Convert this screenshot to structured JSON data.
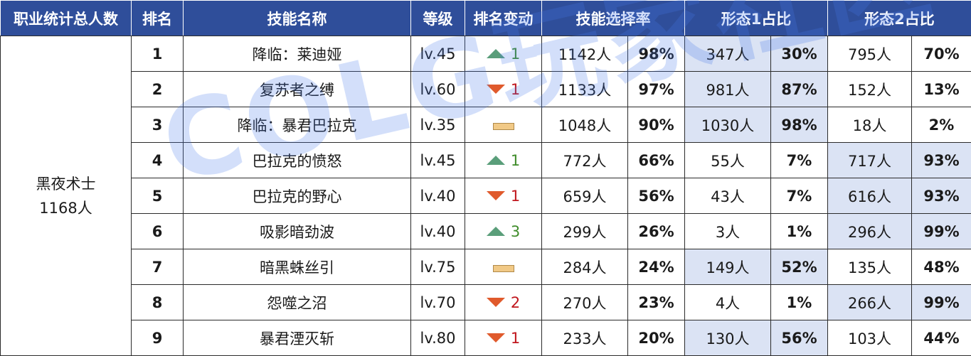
{
  "headers": {
    "job_total": "职业统计总人数",
    "rank": "排名",
    "skill_name": "技能名称",
    "level": "等级",
    "rank_change": "排名变动",
    "select_rate": "技能选择率",
    "form1": "形态1占比",
    "form2": "形态2占比"
  },
  "job": {
    "name": "黑夜术士",
    "total": "1168人"
  },
  "rows": [
    {
      "rank": "1",
      "name": "降临：莱迪娅",
      "level": "lv.45",
      "change_dir": "up",
      "change_num": "1",
      "sel_count": "1142人",
      "sel_pct": "98%",
      "f1_count": "347人",
      "f1_pct": "30%",
      "f2_count": "795人",
      "f2_pct": "70%"
    },
    {
      "rank": "2",
      "name": "复苏者之缚",
      "level": "lv.60",
      "change_dir": "down",
      "change_num": "1",
      "sel_count": "1133人",
      "sel_pct": "97%",
      "f1_count": "981人",
      "f1_pct": "87%",
      "f2_count": "152人",
      "f2_pct": "13%"
    },
    {
      "rank": "3",
      "name": "降临：暴君巴拉克",
      "level": "lv.35",
      "change_dir": "flat",
      "change_num": "",
      "sel_count": "1048人",
      "sel_pct": "90%",
      "f1_count": "1030人",
      "f1_pct": "98%",
      "f2_count": "18人",
      "f2_pct": "2%"
    },
    {
      "rank": "4",
      "name": "巴拉克的愤怒",
      "level": "lv.45",
      "change_dir": "up",
      "change_num": "1",
      "sel_count": "772人",
      "sel_pct": "66%",
      "f1_count": "55人",
      "f1_pct": "7%",
      "f2_count": "717人",
      "f2_pct": "93%"
    },
    {
      "rank": "5",
      "name": "巴拉克的野心",
      "level": "lv.40",
      "change_dir": "down",
      "change_num": "1",
      "sel_count": "659人",
      "sel_pct": "56%",
      "f1_count": "43人",
      "f1_pct": "7%",
      "f2_count": "616人",
      "f2_pct": "93%"
    },
    {
      "rank": "6",
      "name": "吸影暗劲波",
      "level": "lv.40",
      "change_dir": "up",
      "change_num": "3",
      "sel_count": "299人",
      "sel_pct": "26%",
      "f1_count": "3人",
      "f1_pct": "1%",
      "f2_count": "296人",
      "f2_pct": "99%"
    },
    {
      "rank": "7",
      "name": "暗黑蛛丝引",
      "level": "lv.75",
      "change_dir": "flat",
      "change_num": "",
      "sel_count": "284人",
      "sel_pct": "24%",
      "f1_count": "149人",
      "f1_pct": "52%",
      "f2_count": "135人",
      "f2_pct": "48%"
    },
    {
      "rank": "8",
      "name": "怨噬之沼",
      "level": "lv.70",
      "change_dir": "down",
      "change_num": "2",
      "sel_count": "270人",
      "sel_pct": "23%",
      "f1_count": "4人",
      "f1_pct": "1%",
      "f2_count": "266人",
      "f2_pct": "99%"
    },
    {
      "rank": "9",
      "name": "暴君湮灭斩",
      "level": "lv.80",
      "change_dir": "down",
      "change_num": "1",
      "sel_count": "233人",
      "sel_pct": "20%",
      "f1_count": "130人",
      "f1_pct": "56%",
      "f2_count": "103人",
      "f2_pct": "44%"
    }
  ],
  "watermark": "COLG玩家社区",
  "colors": {
    "header_bg": "#2f4e9a",
    "highlight_bg": "#dbe3f4",
    "rank_top": "#f0a21c",
    "up": "#5a9e7a",
    "down": "#e05a2c"
  }
}
